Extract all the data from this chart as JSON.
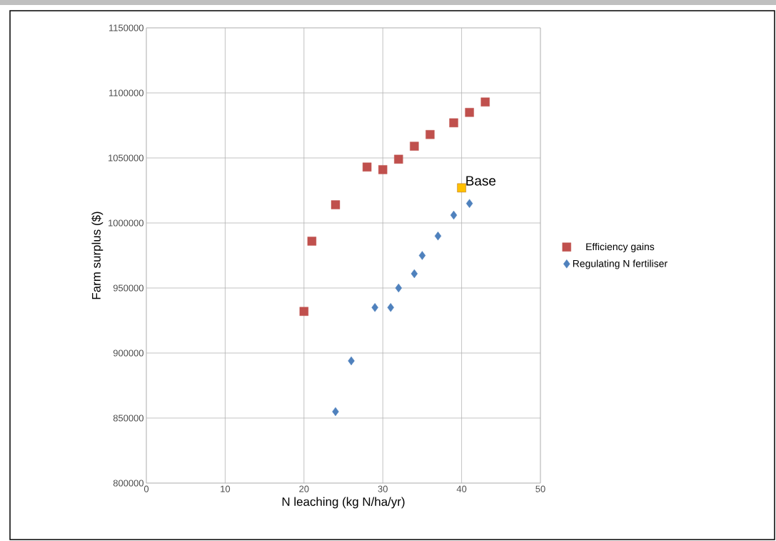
{
  "chart_data": {
    "type": "scatter",
    "xlabel": "N leaching (kg N/ha/yr)",
    "ylabel": "Farm surplus ($)",
    "xlim": [
      0,
      50
    ],
    "xticks": [
      0,
      10,
      20,
      30,
      40,
      50
    ],
    "ylim": [
      800000,
      1150000
    ],
    "yticks": [
      800000,
      850000,
      900000,
      950000,
      1000000,
      1050000,
      1100000,
      1150000
    ],
    "grid": true,
    "legend": "right",
    "series": [
      {
        "name": "Efficiency gains",
        "color": "#c0504d",
        "marker": "square",
        "x": [
          20,
          21,
          24,
          28,
          30,
          32,
          34,
          36,
          39,
          41,
          43
        ],
        "values": [
          932000,
          986000,
          1014000,
          1043000,
          1041000,
          1049000,
          1059000,
          1068000,
          1077000,
          1085000,
          1093000
        ]
      },
      {
        "name": "Regulating N fertiliser",
        "color": "#4f81bd",
        "marker": "diamond",
        "x": [
          24,
          26,
          29,
          31,
          32,
          34,
          35,
          37,
          39,
          41
        ],
        "values": [
          855000,
          894000,
          935000,
          935000,
          950000,
          961000,
          975000,
          990000,
          1006000,
          1015000
        ]
      },
      {
        "color": "#ffc000",
        "marker": "square",
        "x": [
          40
        ],
        "values": [
          1027000
        ]
      }
    ],
    "annotations": [
      {
        "text": "Base",
        "x": 40,
        "y": 1027000
      }
    ]
  }
}
